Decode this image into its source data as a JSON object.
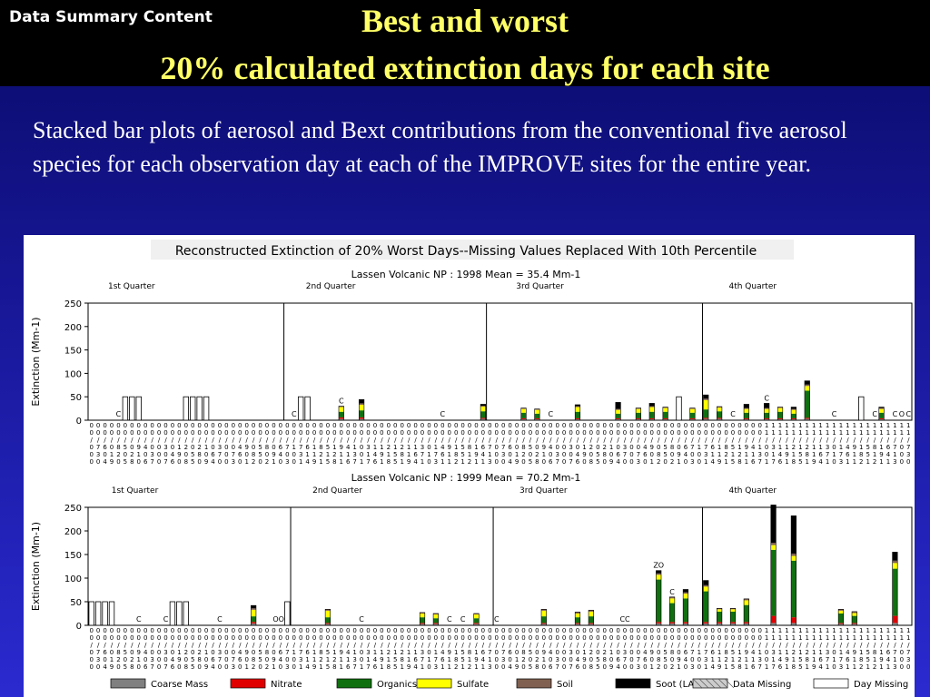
{
  "header": {
    "section_label": "Data Summary Content",
    "title_line1": "Best and worst",
    "title_line2": "20% calculated extinction days for each site"
  },
  "description": "Stacked bar plots of aerosol and Bext contributions from the conventional five aerosol species for each observation day at each of the IMPROVE sites for the entire year.",
  "chart_data": {
    "type": "bar",
    "stacked": true,
    "figure_title": "Reconstructed Extinction of 20% Worst Days--Missing Values Replaced With 10th Percentile",
    "legend": [
      {
        "name": "Coarse Mass",
        "color": "#808080"
      },
      {
        "name": "Nitrate",
        "color": "#e00000"
      },
      {
        "name": "Organics",
        "color": "#107010"
      },
      {
        "name": "Sulfate",
        "color": "#ffff00"
      },
      {
        "name": "Soil",
        "color": "#806050"
      },
      {
        "name": "Soot (LAC)",
        "color": "#000000"
      },
      {
        "name": "Data Missing",
        "color": "#cccccc"
      },
      {
        "name": "Day Missing",
        "color": "#ffffff"
      }
    ],
    "panels": [
      {
        "title": "Lassen Volcanic NP : 1998 Mean = 35.4 Mm-1",
        "ylabel": "Extinction (Mm-1)",
        "ylim": [
          0,
          250
        ],
        "yticks": [
          0,
          50,
          100,
          150,
          200,
          250
        ],
        "quarters": [
          "1st Quarter",
          "2nd Quarter",
          "3rd Quarter",
          "4th Quarter"
        ],
        "n_days": 122,
        "quarter_breaks": [
          29,
          59,
          91
        ],
        "bars": [
          {
            "i": 4,
            "c": "C"
          },
          {
            "i": 5,
            "miss": 50
          },
          {
            "i": 6,
            "miss": 50
          },
          {
            "i": 7,
            "miss": 50
          },
          {
            "i": 14,
            "miss": 50
          },
          {
            "i": 15,
            "miss": 50
          },
          {
            "i": 16,
            "miss": 50
          },
          {
            "i": 17,
            "miss": 50
          },
          {
            "i": 30,
            "c": "C"
          },
          {
            "i": 31,
            "miss": 50
          },
          {
            "i": 32,
            "miss": 50
          },
          {
            "i": 37,
            "seg": [
              3,
              3,
              12,
              10,
              2,
              0
            ],
            "c": "C"
          },
          {
            "i": 40,
            "seg": [
              3,
              3,
              15,
              12,
              3,
              8
            ]
          },
          {
            "i": 52,
            "c": "C"
          },
          {
            "i": 58,
            "seg": [
              3,
              2,
              14,
              10,
              2,
              3
            ]
          },
          {
            "i": 64,
            "seg": [
              2,
              2,
              12,
              8,
              2,
              0
            ]
          },
          {
            "i": 66,
            "seg": [
              2,
              2,
              10,
              8,
              2,
              0
            ]
          },
          {
            "i": 68,
            "c": "C"
          },
          {
            "i": 72,
            "seg": [
              2,
              2,
              14,
              10,
              2,
              3
            ]
          },
          {
            "i": 78,
            "seg": [
              2,
              2,
              10,
              8,
              2,
              14
            ]
          },
          {
            "i": 81,
            "seg": [
              2,
              2,
              12,
              8,
              2,
              0
            ]
          },
          {
            "i": 83,
            "seg": [
              2,
              2,
              14,
              10,
              2,
              6
            ]
          },
          {
            "i": 85,
            "seg": [
              2,
              2,
              14,
              8,
              2,
              0
            ]
          },
          {
            "i": 87,
            "miss": 50
          },
          {
            "i": 89,
            "seg": [
              2,
              2,
              12,
              8,
              2,
              0
            ]
          },
          {
            "i": 91,
            "seg": [
              3,
              2,
              18,
              20,
              3,
              8
            ]
          },
          {
            "i": 93,
            "seg": [
              3,
              2,
              14,
              8,
              2,
              0
            ]
          },
          {
            "i": 95,
            "c": "C"
          },
          {
            "i": 97,
            "seg": [
              2,
              2,
              12,
              8,
              2,
              8
            ]
          },
          {
            "i": 100,
            "seg": [
              2,
              2,
              12,
              8,
              2,
              10
            ],
            "c": "C"
          },
          {
            "i": 102,
            "seg": [
              2,
              2,
              14,
              8,
              2,
              0
            ]
          },
          {
            "i": 104,
            "seg": [
              2,
              2,
              10,
              8,
              2,
              4
            ]
          },
          {
            "i": 106,
            "seg": [
              3,
              2,
              58,
              10,
              3,
              8
            ]
          },
          {
            "i": 110,
            "c": "C"
          },
          {
            "i": 114,
            "miss": 50
          },
          {
            "i": 116,
            "c": "C"
          },
          {
            "i": 117,
            "seg": [
              2,
              2,
              12,
              8,
              2,
              2
            ]
          },
          {
            "i": 119,
            "c": "C"
          },
          {
            "i": 120,
            "c": "O"
          },
          {
            "i": 121,
            "c": "C"
          }
        ]
      },
      {
        "title": "Lassen Volcanic NP : 1999 Mean = 70.2 Mm-1",
        "ylabel": "Extinction (Mm-1)",
        "ylim": [
          0,
          250
        ],
        "yticks": [
          0,
          50,
          100,
          150,
          200,
          250
        ],
        "quarters": [
          "1st Quarter",
          "2nd Quarter",
          "3rd Quarter",
          "4th Quarter"
        ],
        "n_days": 122,
        "quarter_breaks": [
          30,
          60,
          91
        ],
        "bars": [
          {
            "i": 0,
            "miss": 50
          },
          {
            "i": 1,
            "miss": 50
          },
          {
            "i": 2,
            "miss": 50
          },
          {
            "i": 3,
            "miss": 50
          },
          {
            "i": 7,
            "c": "C"
          },
          {
            "i": 11,
            "c": "C"
          },
          {
            "i": 12,
            "miss": 50
          },
          {
            "i": 13,
            "miss": 50
          },
          {
            "i": 14,
            "miss": 50
          },
          {
            "i": 19,
            "c": "C"
          },
          {
            "i": 24,
            "seg": [
              4,
              3,
              12,
              14,
              3,
              6
            ]
          },
          {
            "i": 28,
            "c": "OOL"
          },
          {
            "i": 29,
            "miss": 50
          },
          {
            "i": 35,
            "seg": [
              3,
              2,
              12,
              14,
              3,
              0
            ]
          },
          {
            "i": 40,
            "c": "C"
          },
          {
            "i": 49,
            "seg": [
              3,
              2,
              12,
              8,
              2,
              0
            ]
          },
          {
            "i": 51,
            "seg": [
              3,
              2,
              10,
              8,
              2,
              0
            ]
          },
          {
            "i": 53,
            "c": "C"
          },
          {
            "i": 55,
            "c": "C"
          },
          {
            "i": 57,
            "seg": [
              3,
              2,
              10,
              8,
              2,
              0
            ]
          },
          {
            "i": 60,
            "c": "C"
          },
          {
            "i": 67,
            "seg": [
              3,
              2,
              14,
              12,
              3,
              0
            ]
          },
          {
            "i": 72,
            "seg": [
              3,
              2,
              12,
              8,
              3,
              0
            ]
          },
          {
            "i": 74,
            "seg": [
              3,
              2,
              14,
              10,
              3,
              0
            ]
          },
          {
            "i": 79,
            "c": "CC"
          },
          {
            "i": 84,
            "seg": [
              4,
              3,
              90,
              10,
              3,
              6
            ],
            "c": "ZO"
          },
          {
            "i": 86,
            "seg": [
              4,
              3,
              40,
              10,
              3,
              0
            ],
            "c": "C"
          },
          {
            "i": 88,
            "seg": [
              4,
              3,
              50,
              10,
              3,
              6
            ]
          },
          {
            "i": 91,
            "seg": [
              4,
              3,
              65,
              10,
              3,
              10
            ]
          },
          {
            "i": 93,
            "seg": [
              4,
              3,
              22,
              5,
              2,
              0
            ]
          },
          {
            "i": 95,
            "seg": [
              4,
              3,
              22,
              5,
              2,
              0
            ]
          },
          {
            "i": 97,
            "seg": [
              4,
              3,
              36,
              10,
              3,
              0
            ]
          },
          {
            "i": 101,
            "seg": [
              5,
              15,
              140,
              10,
              5,
              80
            ]
          },
          {
            "i": 104,
            "seg": [
              5,
              12,
              120,
              10,
              5,
              80
            ]
          },
          {
            "i": 111,
            "seg": [
              3,
              2,
              20,
              6,
              3,
              0
            ]
          },
          {
            "i": 113,
            "seg": [
              3,
              2,
              15,
              6,
              3,
              0
            ]
          },
          {
            "i": 119,
            "seg": [
              5,
              15,
              100,
              12,
              5,
              18
            ]
          }
        ]
      }
    ]
  }
}
